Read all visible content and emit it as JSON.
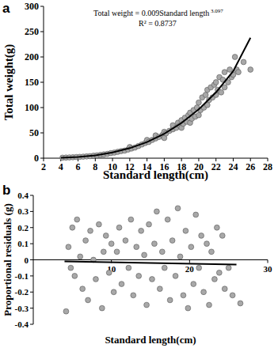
{
  "chart_data": [
    {
      "type": "scatter",
      "title": "a",
      "x_label": "Standard length(cm)",
      "y_label": "Total weight(g)",
      "xlim": [
        2,
        28
      ],
      "xticks": [
        2,
        4,
        6,
        8,
        10,
        12,
        14,
        16,
        18,
        20,
        22,
        24,
        26,
        28
      ],
      "ylim": [
        0,
        300
      ],
      "yticks": [
        0,
        50,
        100,
        150,
        200,
        250,
        300
      ],
      "grid": false,
      "annotations": [
        {
          "text": "Total weight = 0.009Standard length",
          "superscript": "3.097"
        },
        {
          "text": "R² = 0.8737"
        }
      ],
      "series": [
        {
          "type": "scatter",
          "color": "#a8a8a8",
          "marker": "circle",
          "x": [
            4.2,
            4.6,
            5,
            5.4,
            5.8,
            6.2,
            6.6,
            7,
            7.4,
            7.8,
            8.2,
            8.6,
            9,
            9.4,
            9.8,
            10.2,
            10.6,
            11,
            11.4,
            11.8,
            12,
            12.2,
            12.6,
            13,
            13.4,
            13.8,
            14,
            14.2,
            14.6,
            15,
            15,
            15.4,
            15.8,
            16,
            16,
            16.2,
            16.6,
            17,
            17,
            17.4,
            17.6,
            17.8,
            18,
            18,
            18.2,
            18.4,
            18.6,
            18.8,
            19,
            19,
            19.2,
            19.4,
            19.6,
            19.8,
            20,
            20,
            20.2,
            20.4,
            20.6,
            20.8,
            21,
            21,
            21.2,
            21.4,
            21.6,
            21.8,
            22,
            22,
            22.2,
            22.4,
            22.6,
            22.8,
            23,
            23,
            23.4,
            23.6,
            23.8,
            24,
            24.2,
            24.4,
            24.6,
            25.2,
            26
          ],
          "values": [
            1,
            1.2,
            1.5,
            1.8,
            2.2,
            2.6,
            3,
            3.5,
            4,
            5,
            5.5,
            6.5,
            7.5,
            8.5,
            10,
            11,
            12.5,
            14,
            15,
            17,
            22,
            19,
            21,
            24,
            27,
            30,
            36,
            32,
            36,
            39,
            45,
            42,
            46,
            40,
            52,
            49,
            54,
            57,
            65,
            60,
            70,
            64,
            60,
            75,
            68,
            80,
            72,
            85,
            70,
            90,
            78,
            95,
            82,
            100,
            85,
            110,
            95,
            120,
            100,
            125,
            105,
            135,
            115,
            140,
            120,
            145,
            125,
            150,
            135,
            160,
            130,
            155,
            140,
            170,
            150,
            175,
            160,
            165,
            200,
            175,
            170,
            190,
            175
          ]
        },
        {
          "type": "line",
          "color": "#000000",
          "x": [
            4,
            6,
            8,
            10,
            12,
            14,
            16,
            18,
            20,
            22,
            24,
            26
          ],
          "values": [
            0.7,
            2.3,
            5.6,
            11.3,
            19.8,
            31.9,
            48.2,
            69.5,
            96.3,
            130,
            172,
            238
          ]
        }
      ]
    },
    {
      "type": "scatter",
      "title": "b",
      "x_label": "Standard length(cm)",
      "y_label": "Proportional residuals (g)",
      "xlim": [
        0,
        30
      ],
      "xticks": [
        10,
        20,
        30
      ],
      "ylim": [
        -0.4,
        0.4
      ],
      "yticks": [
        -0.4,
        -0.3,
        -0.2,
        -0.1,
        0,
        0.1,
        0.2,
        0.3,
        0.4
      ],
      "grid": false,
      "series": [
        {
          "type": "scatter",
          "color": "#a8a8a8",
          "marker": "circle",
          "x": [
            4.2,
            4.5,
            4.8,
            5,
            5.3,
            5.6,
            6,
            6.3,
            6.7,
            7,
            7.3,
            7.7,
            8,
            8.4,
            8.8,
            9,
            9.3,
            9.7,
            10,
            10.3,
            10.7,
            11,
            11.3,
            11.8,
            12.2,
            12.5,
            12.8,
            13.2,
            13.5,
            13.8,
            14.2,
            14.5,
            14.8,
            15.2,
            15.5,
            15.8,
            16.2,
            16.5,
            16.8,
            17.2,
            17.5,
            17.8,
            18.2,
            18.5,
            18.8,
            19.2,
            19.5,
            19.8,
            20.2,
            20.5,
            20.8,
            21.2,
            21.5,
            21.8,
            22.2,
            22.5,
            22.8,
            23.2,
            23.5,
            23.8,
            24.2,
            24.5,
            25,
            25.5,
            26.5
          ],
          "values": [
            -0.32,
            0.08,
            -0.05,
            0.2,
            -0.1,
            0.25,
            0.02,
            -0.18,
            0.12,
            -0.25,
            0.18,
            0,
            -0.12,
            0.22,
            -0.3,
            0.05,
            0.15,
            -0.08,
            0.1,
            -0.2,
            0.05,
            0.2,
            -0.15,
            0.12,
            -0.05,
            0.25,
            -0.22,
            0.08,
            -0.1,
            0.18,
            0.03,
            -0.28,
            0.22,
            -0.12,
            0.1,
            0.3,
            -0.18,
            0.05,
            -0.05,
            0.25,
            -0.25,
            0.12,
            -0.1,
            0.32,
            0.02,
            -0.22,
            0.18,
            -0.3,
            0.08,
            -0.15,
            0.28,
            -0.05,
            0.15,
            -0.2,
            0.1,
            -0.28,
            0.05,
            -0.12,
            0.2,
            -0.08,
            0.15,
            -0.18,
            -0.05,
            -0.22,
            -0.27
          ]
        },
        {
          "type": "line",
          "color": "#000000",
          "x": [
            4,
            26
          ],
          "values": [
            -0.01,
            -0.03
          ]
        }
      ]
    }
  ]
}
